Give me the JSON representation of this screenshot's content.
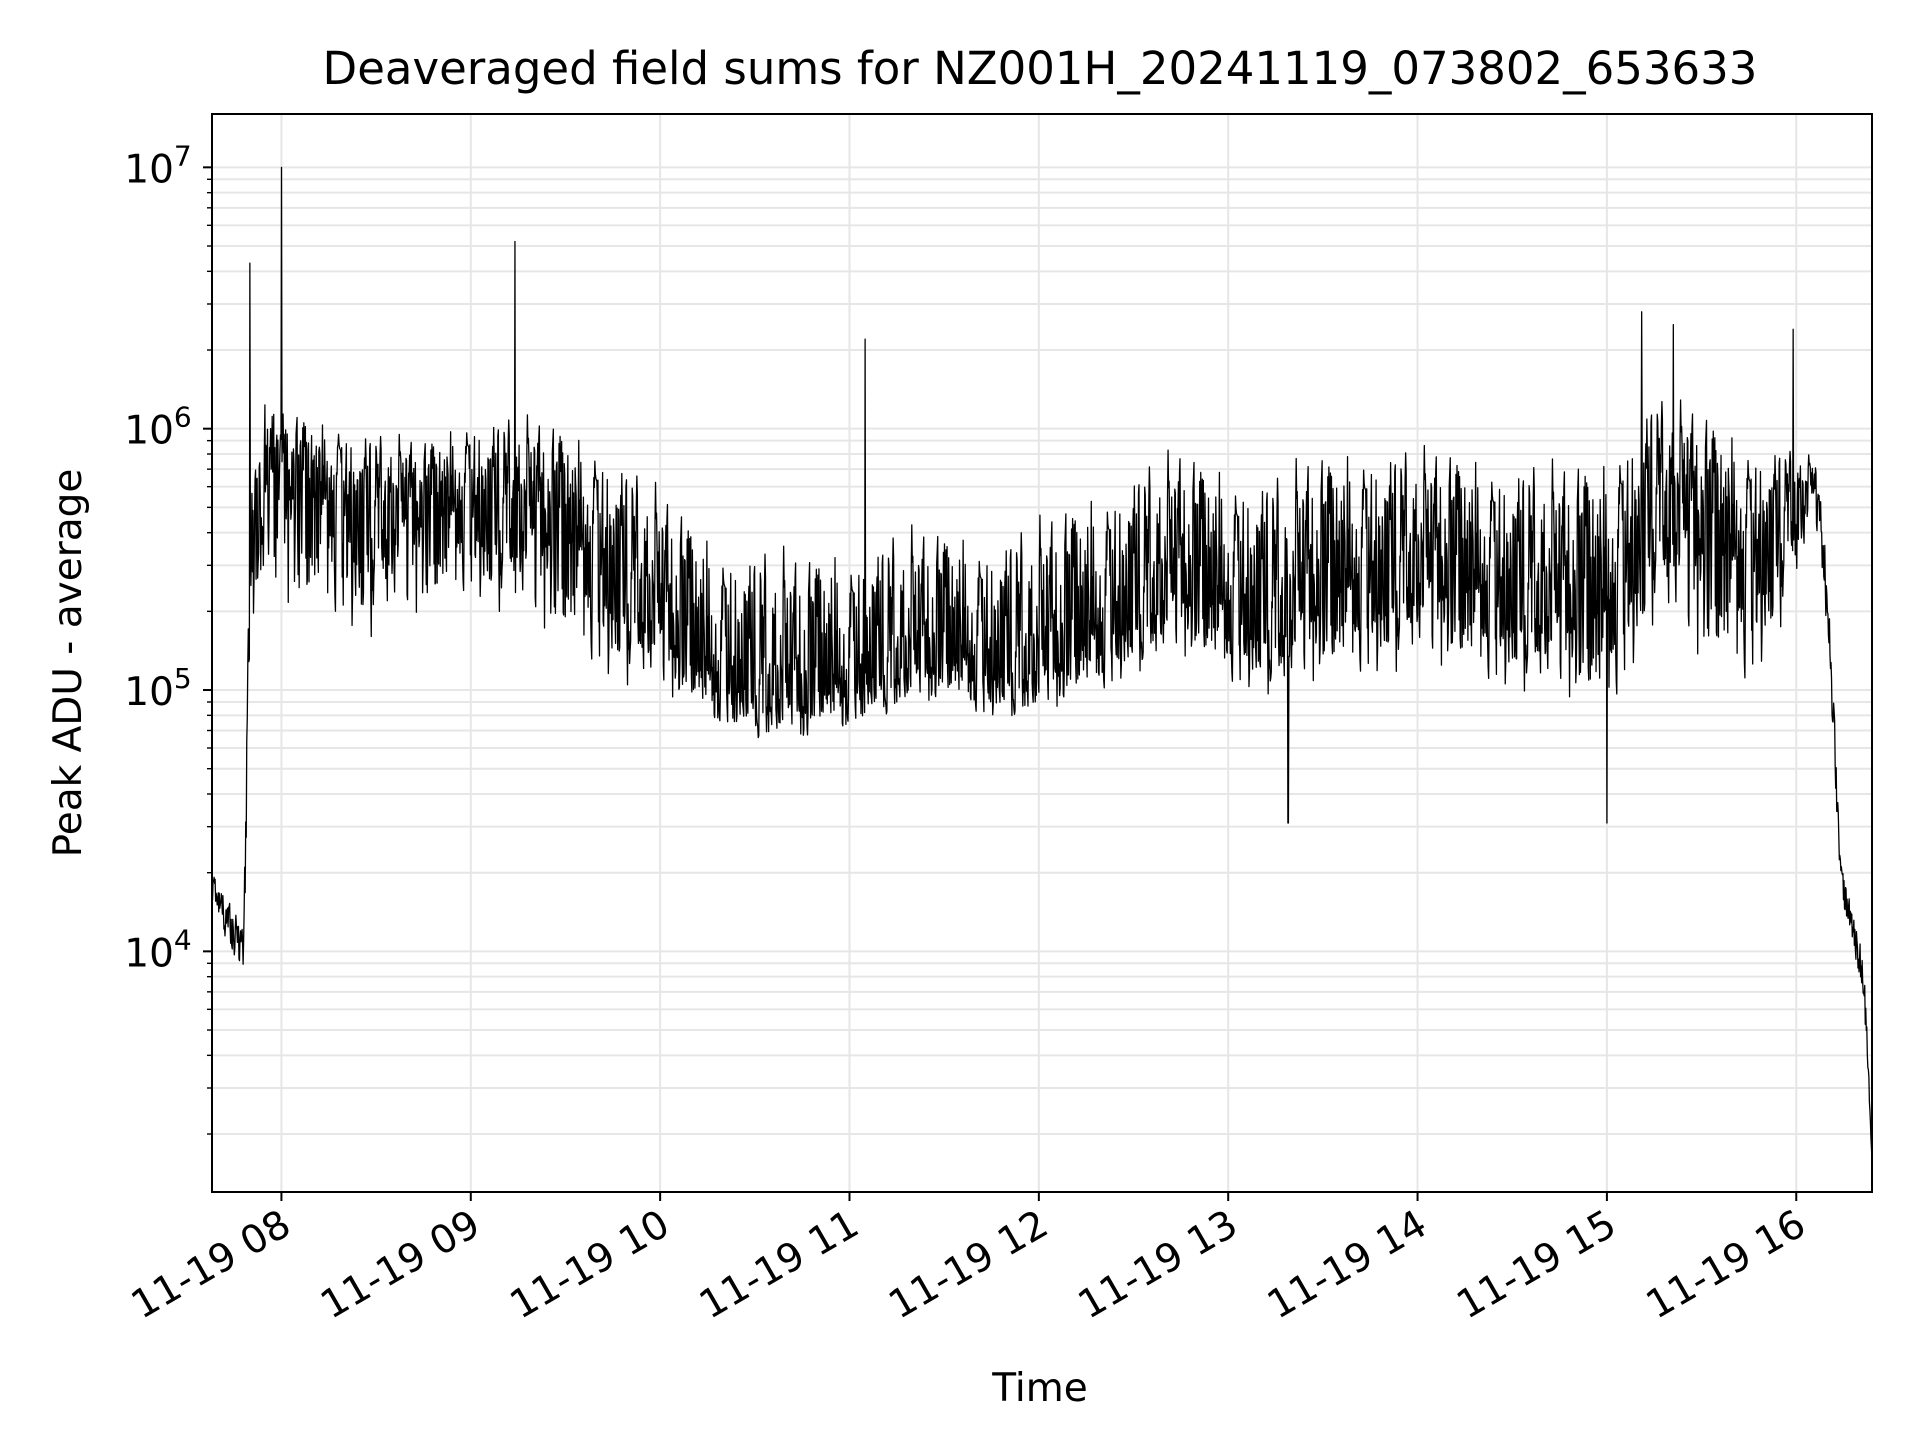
{
  "chart_data": {
    "type": "line",
    "title": "Deaveraged field sums for NZ001H_20241119_073802_653633",
    "xlabel": "Time",
    "ylabel": "Peak ADU - average",
    "x_axis": {
      "kind": "datetime",
      "range": [
        "2024-11-19 07:38",
        "2024-11-19 16:24"
      ],
      "ticks": [
        "2024-11-19 08:00",
        "2024-11-19 09:00",
        "2024-11-19 10:00",
        "2024-11-19 11:00",
        "2024-11-19 12:00",
        "2024-11-19 13:00",
        "2024-11-19 14:00",
        "2024-11-19 15:00",
        "2024-11-19 16:00"
      ],
      "tick_labels": [
        "11-19 08",
        "11-19 09",
        "11-19 10",
        "11-19 11",
        "11-19 12",
        "11-19 13",
        "11-19 14",
        "11-19 15",
        "11-19 16"
      ],
      "tick_label_rotation": 30
    },
    "y_axis": {
      "scale": "log",
      "range": [
        1200,
        16000000
      ],
      "tick_values": [
        10000,
        100000,
        1000000,
        10000000
      ],
      "tick_labels": [
        {
          "base": "10",
          "exp": "4"
        },
        {
          "base": "10",
          "exp": "5"
        },
        {
          "base": "10",
          "exp": "6"
        },
        {
          "base": "10",
          "exp": "7"
        }
      ]
    },
    "grid": {
      "major": true,
      "minor_y": true,
      "color": "#e6e6e6"
    },
    "legend": "none",
    "series": [
      {
        "color": "#000000",
        "sampling": "approximate envelope (daily-averaged log mean, 5th-95th percentile log spread) read from the plot; the rendered trace samples within this envelope",
        "x": [
          "2024-11-19 07:38",
          "2024-11-19 07:45",
          "2024-11-19 07:48",
          "2024-11-19 07:50",
          "2024-11-19 07:55",
          "2024-11-19 08:00",
          "2024-11-19 08:15",
          "2024-11-19 08:30",
          "2024-11-19 08:45",
          "2024-11-19 09:00",
          "2024-11-19 09:15",
          "2024-11-19 09:30",
          "2024-11-19 09:45",
          "2024-11-19 10:00",
          "2024-11-19 10:15",
          "2024-11-19 10:30",
          "2024-11-19 10:45",
          "2024-11-19 11:00",
          "2024-11-19 11:15",
          "2024-11-19 11:30",
          "2024-11-19 11:45",
          "2024-11-19 12:00",
          "2024-11-19 12:15",
          "2024-11-19 12:30",
          "2024-11-19 12:45",
          "2024-11-19 13:00",
          "2024-11-19 13:15",
          "2024-11-19 13:30",
          "2024-11-19 13:45",
          "2024-11-19 14:00",
          "2024-11-19 14:15",
          "2024-11-19 14:30",
          "2024-11-19 14:45",
          "2024-11-19 15:00",
          "2024-11-19 15:15",
          "2024-11-19 15:30",
          "2024-11-19 15:45",
          "2024-11-19 16:00",
          "2024-11-19 16:06",
          "2024-11-19 16:10",
          "2024-11-19 16:14",
          "2024-11-19 16:18",
          "2024-11-19 16:22",
          "2024-11-19 16:24"
        ],
        "y_center": [
          18000,
          12000,
          10000,
          300000,
          700000,
          650000,
          550000,
          450000,
          480000,
          500000,
          450000,
          400000,
          280000,
          180000,
          110000,
          95000,
          90000,
          100000,
          120000,
          130000,
          120000,
          120000,
          150000,
          200000,
          250000,
          200000,
          180000,
          230000,
          260000,
          280000,
          250000,
          220000,
          200000,
          200000,
          500000,
          400000,
          300000,
          500000,
          600000,
          200000,
          20000,
          12000,
          6000,
          1500
        ],
        "y_low": [
          15000,
          9000,
          7500,
          100000,
          300000,
          150000,
          150000,
          130000,
          150000,
          200000,
          150000,
          110000,
          90000,
          80000,
          70000,
          65000,
          60000,
          70000,
          80000,
          80000,
          70000,
          70000,
          80000,
          100000,
          110000,
          90000,
          80000,
          85000,
          95000,
          100000,
          90000,
          85000,
          75000,
          60000,
          150000,
          90000,
          80000,
          200000,
          400000,
          150000,
          15000,
          10000,
          4500,
          1500
        ],
        "y_high": [
          20000,
          15000,
          12000,
          600000,
          1700000,
          1300000,
          1200000,
          1100000,
          1000000,
          1300000,
          1300000,
          1200000,
          1000000,
          700000,
          500000,
          450000,
          400000,
          450000,
          500000,
          500000,
          480000,
          550000,
          700000,
          900000,
          1000000,
          900000,
          850000,
          1000000,
          1100000,
          1000000,
          1000000,
          950000,
          900000,
          1000000,
          1600000,
          1400000,
          1100000,
          900000,
          800000,
          350000,
          22000,
          15000,
          9000,
          1500
        ],
        "spikes": [
          {
            "x": "2024-11-19 07:50",
            "y": 4300000
          },
          {
            "x": "2024-11-19 08:00",
            "y": 10000000
          },
          {
            "x": "2024-11-19 09:14",
            "y": 5200000
          },
          {
            "x": "2024-11-19 11:05",
            "y": 2200000
          },
          {
            "x": "2024-11-19 13:19",
            "y": 31000
          },
          {
            "x": "2024-11-19 15:00",
            "y": 31000
          },
          {
            "x": "2024-11-19 15:11",
            "y": 2800000
          },
          {
            "x": "2024-11-19 15:21",
            "y": 2500000
          },
          {
            "x": "2024-11-19 15:59",
            "y": 2400000
          }
        ]
      }
    ]
  }
}
